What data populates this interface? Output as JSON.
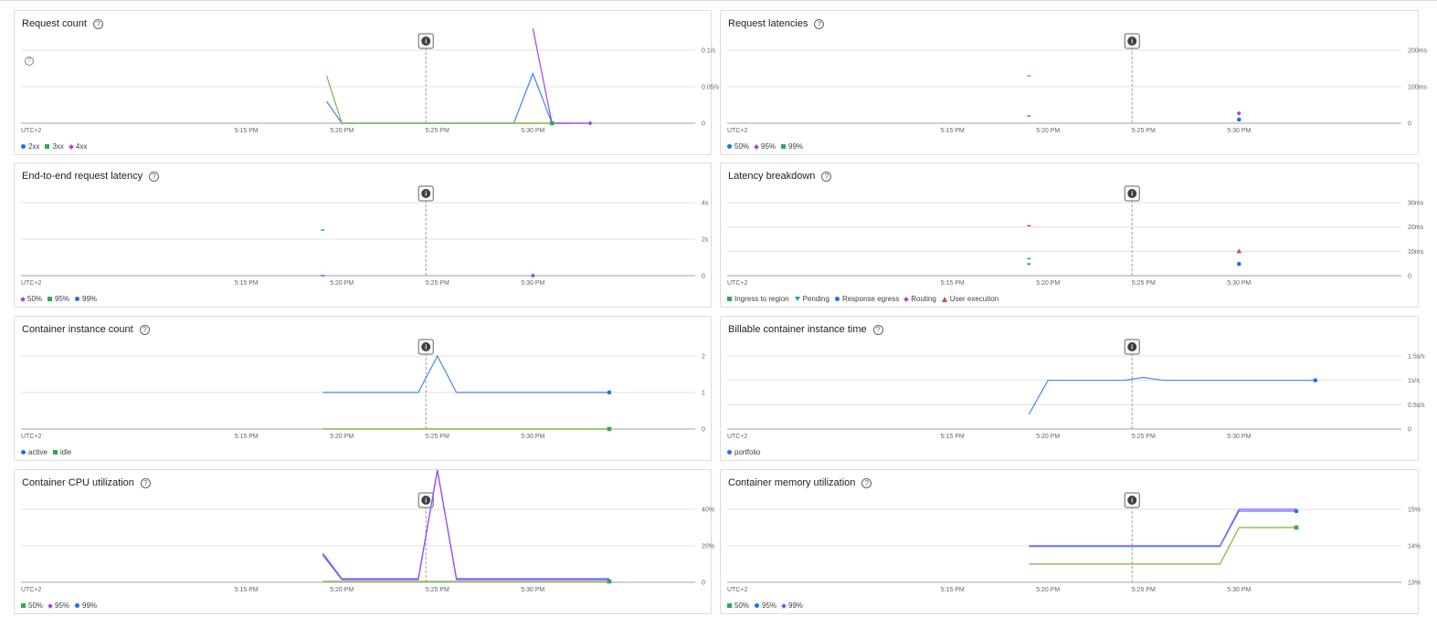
{
  "colors": {
    "blue": "#1a73e8",
    "blue_line": "#4285f4",
    "green": "#34a853",
    "green_line": "#7cb342",
    "purple": "#a142f4",
    "teal": "#12a4af",
    "red": "#ea4335",
    "grid": "#e0e0e0",
    "border": "#dadce0"
  },
  "icons": {
    "help": "help-circle-icon",
    "info": "info-icon"
  },
  "help_glyph": "?",
  "info_glyph": "i",
  "x_axis": {
    "timezone": "UTC+2",
    "ticks": [
      "5:15 PM",
      "5:20 PM",
      "5:25 PM",
      "5:30 PM"
    ],
    "tick_minutes": [
      15,
      20,
      25,
      30
    ],
    "cursor_minute": 24.4,
    "x_unit": "minutes after 5:00 PM"
  },
  "charts": [
    {
      "id": "request-count",
      "title": "Request count",
      "y_ticks": [
        "0.1/s",
        "0.05/s",
        "0"
      ],
      "y_values": [
        0.1,
        0.05,
        0
      ],
      "ylim": [
        0,
        0.1
      ],
      "legend": [
        {
          "label": "2xx",
          "shape": "circle",
          "color": "#1a73e8"
        },
        {
          "label": "3xx",
          "shape": "square",
          "color": "#34a853"
        },
        {
          "label": "4xx",
          "shape": "diamond",
          "color": "#a142f4"
        }
      ]
    },
    {
      "id": "request-latencies",
      "title": "Request latencies",
      "y_ticks": [
        "200ms",
        "100ms",
        "0"
      ],
      "y_values": [
        200,
        100,
        0
      ],
      "ylim": [
        0,
        200
      ],
      "legend": [
        {
          "label": "50%",
          "shape": "circle",
          "color": "#1a73e8"
        },
        {
          "label": "95%",
          "shape": "diamond",
          "color": "#a142f4"
        },
        {
          "label": "99%",
          "shape": "square",
          "color": "#34a853"
        }
      ]
    },
    {
      "id": "e2e-latency",
      "title": "End-to-end request latency",
      "y_ticks": [
        "4s",
        "2s",
        "0"
      ],
      "y_values": [
        4,
        2,
        0
      ],
      "ylim": [
        0,
        4
      ],
      "legend": [
        {
          "label": "50%",
          "shape": "diamond",
          "color": "#a142f4"
        },
        {
          "label": "95%",
          "shape": "square",
          "color": "#34a853"
        },
        {
          "label": "99%",
          "shape": "circle",
          "color": "#1a73e8"
        }
      ]
    },
    {
      "id": "latency-breakdown",
      "title": "Latency breakdown",
      "y_ticks": [
        "30ms",
        "20ms",
        "10ms",
        "0"
      ],
      "y_values": [
        30,
        20,
        10,
        0
      ],
      "ylim": [
        0,
        30
      ],
      "legend": [
        {
          "label": "Ingress to region",
          "shape": "square",
          "color": "#34a853"
        },
        {
          "label": "Pending",
          "shape": "tri-down",
          "color": "#12a4af"
        },
        {
          "label": "Response egress",
          "shape": "circle",
          "color": "#1a73e8"
        },
        {
          "label": "Routing",
          "shape": "diamond",
          "color": "#a142f4"
        },
        {
          "label": "User execution",
          "shape": "tri-up",
          "color": "#ea4335"
        }
      ]
    },
    {
      "id": "instance-count",
      "title": "Container instance count",
      "y_ticks": [
        "2",
        "1",
        "0"
      ],
      "y_values": [
        2,
        1,
        0
      ],
      "ylim": [
        0,
        2
      ],
      "legend": [
        {
          "label": "active",
          "shape": "circle",
          "color": "#1a73e8"
        },
        {
          "label": "idle",
          "shape": "square",
          "color": "#34a853"
        }
      ]
    },
    {
      "id": "billable-time",
      "title": "Billable container instance time",
      "y_ticks": [
        "1.5s/s",
        "1s/s",
        "0.5s/s",
        "0"
      ],
      "y_values": [
        1.5,
        1,
        0.5,
        0
      ],
      "ylim": [
        0,
        1.5
      ],
      "legend": [
        {
          "label": "portfolio",
          "shape": "circle",
          "color": "#1a73e8"
        }
      ]
    },
    {
      "id": "cpu-utilization",
      "title": "Container CPU utilization",
      "y_ticks": [
        "40%",
        "20%",
        "0"
      ],
      "y_values": [
        40,
        20,
        0
      ],
      "ylim": [
        0,
        40
      ],
      "legend": [
        {
          "label": "50%",
          "shape": "square",
          "color": "#34a853"
        },
        {
          "label": "95%",
          "shape": "diamond",
          "color": "#a142f4"
        },
        {
          "label": "99%",
          "shape": "circle",
          "color": "#1a73e8"
        }
      ]
    },
    {
      "id": "memory-utilization",
      "title": "Container memory utilization",
      "y_ticks": [
        "15%",
        "14%",
        "13%"
      ],
      "y_values": [
        15,
        14,
        13
      ],
      "ylim": [
        13,
        15
      ],
      "legend": [
        {
          "label": "50%",
          "shape": "square",
          "color": "#34a853"
        },
        {
          "label": "95%",
          "shape": "circle",
          "color": "#1a73e8"
        },
        {
          "label": "99%",
          "shape": "diamond",
          "color": "#a142f4"
        }
      ]
    }
  ],
  "chart_data": [
    {
      "type": "line",
      "title": "Request count",
      "ylim": [
        0,
        0.1
      ],
      "series": [
        {
          "name": "2xx",
          "color": "#4285f4",
          "x": [
            19.2,
            20,
            29,
            30,
            31,
            32
          ],
          "y": [
            0.03,
            0,
            0,
            0.068,
            0,
            0
          ]
        },
        {
          "name": "3xx",
          "color": "#7cb342",
          "x": [
            19.2,
            20,
            31
          ],
          "y": [
            0.065,
            0,
            0
          ]
        },
        {
          "name": "4xx",
          "color": "#a142f4",
          "x": [
            30,
            31,
            33
          ],
          "y": [
            0.13,
            0,
            0
          ]
        }
      ],
      "points": [
        {
          "series": "3xx",
          "x": 31,
          "y": 0,
          "shape": "square",
          "color": "#34a853"
        },
        {
          "series": "4xx",
          "x": 33,
          "y": 0,
          "shape": "diamond",
          "color": "#a142f4"
        }
      ]
    },
    {
      "type": "scatter",
      "title": "Request latencies",
      "ylim": [
        0,
        200
      ],
      "points": [
        {
          "series": "95%",
          "x": 19,
          "y": 130,
          "shape": "dash",
          "color": "#e57373"
        },
        {
          "series": "50%",
          "x": 19,
          "y": 20,
          "shape": "dash",
          "color": "#4285f4"
        },
        {
          "series": "95%",
          "x": 30,
          "y": 27,
          "shape": "diamond",
          "color": "#a142f4"
        },
        {
          "series": "50%",
          "x": 30,
          "y": 10,
          "shape": "circle",
          "color": "#1a73e8"
        }
      ]
    },
    {
      "type": "scatter",
      "title": "End-to-end request latency",
      "ylim": [
        0,
        4
      ],
      "points": [
        {
          "series": "95%",
          "x": 19,
          "y": 2.5,
          "shape": "dash",
          "color": "#12a4af"
        },
        {
          "series": "50%",
          "x": 19,
          "y": 0,
          "shape": "dash",
          "color": "#a142f4"
        },
        {
          "series": "50%",
          "x": 30,
          "y": 0,
          "shape": "diamond",
          "color": "#a142f4"
        }
      ]
    },
    {
      "type": "scatter",
      "title": "Latency breakdown",
      "ylim": [
        0,
        30
      ],
      "points": [
        {
          "series": "User execution",
          "x": 19,
          "y": 20.5,
          "shape": "dash",
          "color": "#ea4335"
        },
        {
          "series": "Pending",
          "x": 19,
          "y": 7,
          "shape": "dash",
          "color": "#12a4af"
        },
        {
          "series": "Response egress",
          "x": 19,
          "y": 4.8,
          "shape": "dash",
          "color": "#1a73e8"
        },
        {
          "series": "User execution",
          "x": 30,
          "y": 10,
          "shape": "tri-up",
          "color": "#ea4335"
        },
        {
          "series": "Response egress",
          "x": 30,
          "y": 4.8,
          "shape": "circle",
          "color": "#1a73e8"
        }
      ]
    },
    {
      "type": "line",
      "title": "Container instance count",
      "ylim": [
        0,
        2
      ],
      "series": [
        {
          "name": "active",
          "color": "#4285f4",
          "x": [
            19,
            24,
            25,
            26,
            34
          ],
          "y": [
            1,
            1,
            2,
            1,
            1
          ]
        },
        {
          "name": "idle",
          "color": "#7cb342",
          "x": [
            19,
            34
          ],
          "y": [
            0,
            0
          ]
        }
      ],
      "points": [
        {
          "series": "active",
          "x": 34,
          "y": 1,
          "shape": "circle",
          "color": "#1a73e8"
        },
        {
          "series": "idle",
          "x": 34,
          "y": 0,
          "shape": "square",
          "color": "#34a853"
        }
      ]
    },
    {
      "type": "line",
      "title": "Billable container instance time",
      "ylim": [
        0,
        1.5
      ],
      "series": [
        {
          "name": "portfolio",
          "color": "#4285f4",
          "x": [
            19,
            20,
            24,
            25,
            26,
            34
          ],
          "y": [
            0.3,
            1,
            1,
            1.06,
            1,
            1
          ]
        }
      ],
      "points": [
        {
          "series": "portfolio",
          "x": 34,
          "y": 1,
          "shape": "circle",
          "color": "#1a73e8"
        }
      ]
    },
    {
      "type": "line",
      "title": "Container CPU utilization",
      "ylim": [
        0,
        40
      ],
      "series": [
        {
          "name": "99%",
          "color": "#4285f4",
          "x": [
            19,
            20,
            24,
            25,
            26,
            34
          ],
          "y": [
            16,
            2,
            2,
            67,
            2,
            2
          ]
        },
        {
          "name": "95%",
          "color": "#a142f4",
          "x": [
            19,
            20,
            24,
            25,
            26,
            34
          ],
          "y": [
            15,
            1.5,
            1.5,
            66,
            1.5,
            1.5
          ]
        },
        {
          "name": "50%",
          "color": "#7cb342",
          "x": [
            19,
            34
          ],
          "y": [
            0.5,
            0.5
          ]
        }
      ],
      "points": [
        {
          "series": "50%",
          "x": 34,
          "y": 0.5,
          "shape": "square",
          "color": "#34a853"
        }
      ]
    },
    {
      "type": "line",
      "title": "Container memory utilization",
      "ylim": [
        13,
        15
      ],
      "series": [
        {
          "name": "99%",
          "color": "#a142f4",
          "x": [
            19,
            29,
            30,
            33
          ],
          "y": [
            14,
            14,
            15,
            15
          ]
        },
        {
          "name": "95%",
          "color": "#4285f4",
          "x": [
            19,
            29,
            30,
            33
          ],
          "y": [
            13.98,
            13.98,
            14.95,
            14.95
          ]
        },
        {
          "name": "50%",
          "color": "#7cb342",
          "x": [
            19,
            29,
            30,
            33
          ],
          "y": [
            13.5,
            13.5,
            14.5,
            14.5
          ]
        }
      ],
      "points": [
        {
          "series": "95%",
          "x": 33,
          "y": 14.95,
          "shape": "circle",
          "color": "#1a73e8"
        },
        {
          "series": "50%",
          "x": 33,
          "y": 14.5,
          "shape": "square",
          "color": "#34a853"
        }
      ]
    }
  ]
}
